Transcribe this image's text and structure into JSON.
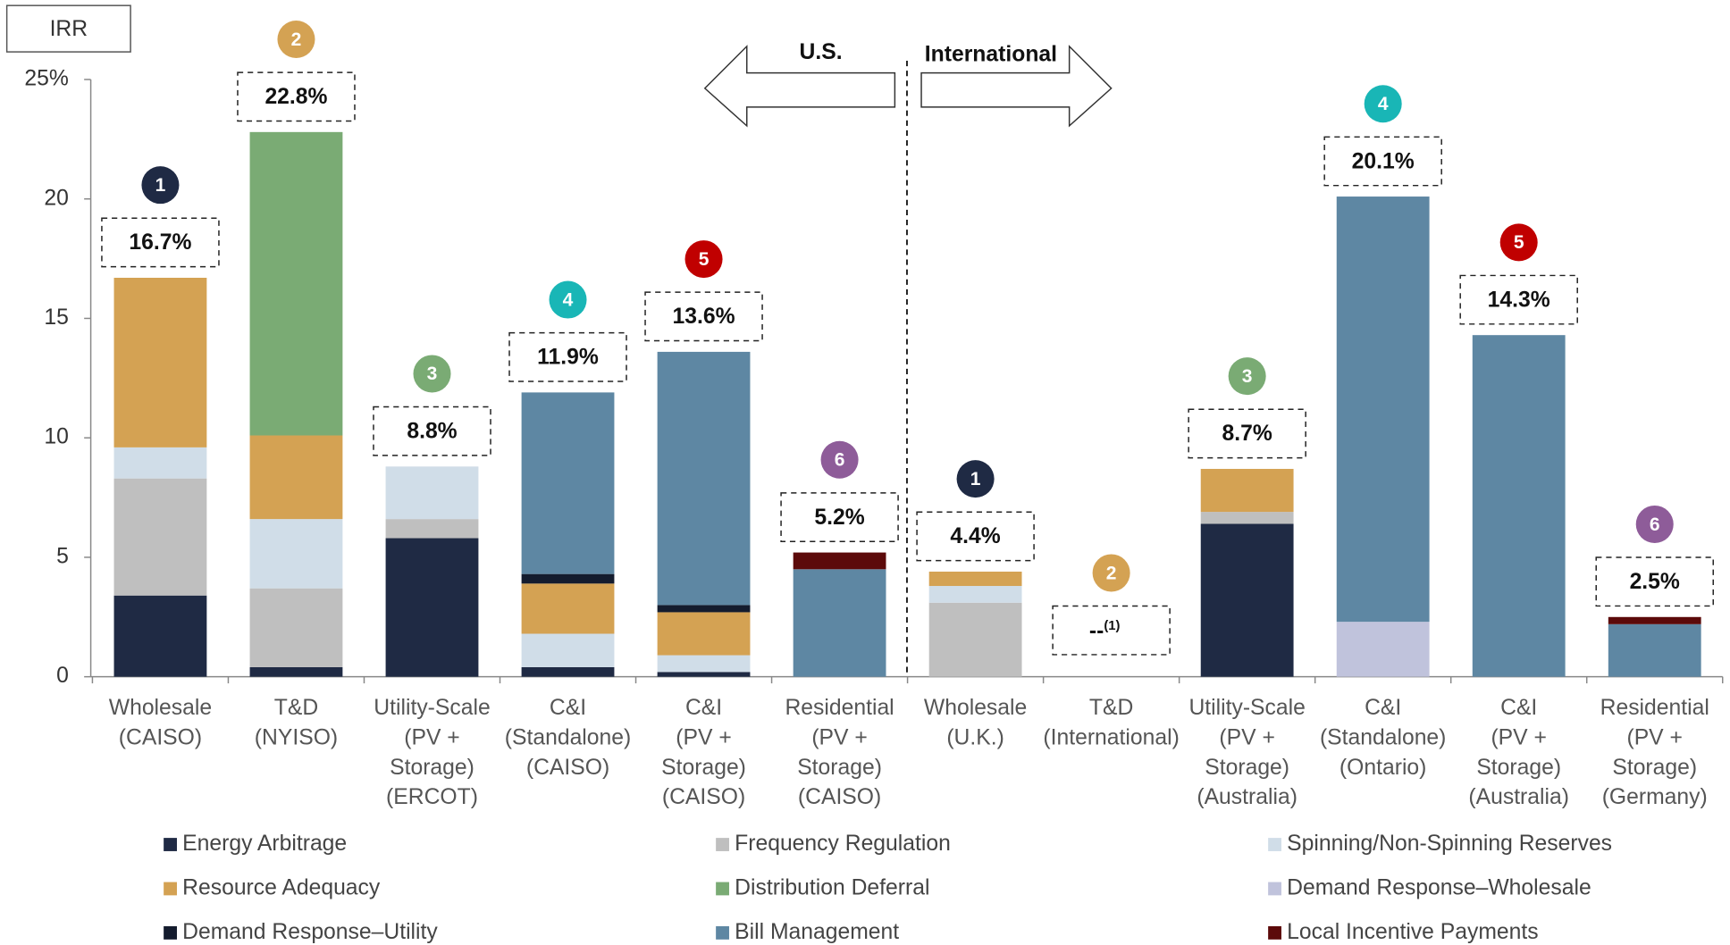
{
  "chart_data": {
    "type": "stacked_bar",
    "y_label": "IRR",
    "regions": [
      "U.S.",
      "International"
    ],
    "categories": [
      [
        "Wholesale",
        "(CAISO)"
      ],
      [
        "T&D",
        "(NYISO)"
      ],
      [
        "Utility-Scale",
        "(PV +",
        "Storage)",
        "(ERCOT)"
      ],
      [
        "C&I",
        "(Standalone)",
        "(CAISO)"
      ],
      [
        "C&I",
        "(PV +",
        "Storage)",
        "(CAISO)"
      ],
      [
        "Residential",
        "(PV +",
        "Storage)",
        "(CAISO)"
      ],
      [
        "Wholesale",
        "(U.K.)"
      ],
      [
        "T&D",
        "(International)"
      ],
      [
        "Utility-Scale",
        "(PV +",
        "Storage)",
        "(Australia)"
      ],
      [
        "C&I",
        "(Standalone)",
        "(Ontario)"
      ],
      [
        "C&I",
        "(PV +",
        "Storage)",
        "(Australia)"
      ],
      [
        "Residential",
        "(PV +",
        "Storage)",
        "(Germany)"
      ]
    ],
    "series": [
      {
        "name": "Energy Arbitrage",
        "color": "#1f2a44",
        "values": [
          3.4,
          0.4,
          5.8,
          0.4,
          0.2,
          null,
          null,
          null,
          6.4,
          null,
          null,
          null
        ]
      },
      {
        "name": "Frequency Regulation",
        "color": "#bfbfbf",
        "values": [
          4.9,
          3.3,
          0.8,
          null,
          null,
          null,
          3.1,
          null,
          0.5,
          null,
          null,
          null
        ]
      },
      {
        "name": "Spinning/Non-Spinning Reserves",
        "color": "#d0dde8",
        "values": [
          1.3,
          2.9,
          2.2,
          1.4,
          0.7,
          null,
          0.7,
          null,
          null,
          null,
          null,
          null
        ]
      },
      {
        "name": "Resource Adequacy",
        "color": "#d4a253",
        "values": [
          7.1,
          3.5,
          null,
          2.1,
          1.8,
          null,
          0.6,
          null,
          1.8,
          null,
          null,
          null
        ]
      },
      {
        "name": "Distribution  Deferral",
        "color": "#7aab74",
        "values": [
          null,
          12.7,
          null,
          null,
          null,
          null,
          null,
          null,
          null,
          null,
          null,
          null
        ]
      },
      {
        "name": "Demand Response–Wholesale",
        "color": "#c0c3dc",
        "values": [
          null,
          null,
          null,
          null,
          null,
          null,
          null,
          null,
          null,
          2.3,
          null,
          null
        ]
      },
      {
        "name": "Demand Response–Utility",
        "color": "#141c2e",
        "values": [
          null,
          null,
          null,
          0.4,
          0.3,
          null,
          null,
          null,
          null,
          null,
          null,
          null
        ]
      },
      {
        "name": "Bill Management",
        "color": "#5e87a3",
        "values": [
          null,
          null,
          null,
          7.6,
          10.6,
          4.5,
          null,
          null,
          null,
          17.8,
          14.3,
          2.2
        ]
      },
      {
        "name": "Local Incentive Payments",
        "color": "#5c0a0a",
        "values": [
          null,
          null,
          null,
          null,
          null,
          0.7,
          null,
          null,
          null,
          null,
          null,
          0.3
        ]
      }
    ],
    "totals": [
      16.7,
      22.8,
      8.8,
      11.9,
      13.6,
      5.2,
      4.4,
      null,
      8.7,
      20.1,
      14.3,
      2.5
    ],
    "total_labels": [
      "16.7%",
      "22.8%",
      "8.8%",
      "11.9%",
      "13.6%",
      "5.2%",
      "4.4%",
      {
        "text": "--",
        "note": "(1)"
      },
      "8.7%",
      "20.1%",
      "14.3%",
      "2.5%"
    ],
    "badges": [
      {
        "label": "1",
        "color": "#1f2a44"
      },
      {
        "label": "2",
        "color": "#d4a253"
      },
      {
        "label": "3",
        "color": "#7aab74"
      },
      {
        "label": "4",
        "color": "#19b6b6"
      },
      {
        "label": "5",
        "color": "#c00000"
      },
      {
        "label": "6",
        "color": "#8e5c99"
      },
      {
        "label": "1",
        "color": "#1f2a44"
      },
      {
        "label": "2",
        "color": "#d4a253"
      },
      {
        "label": "3",
        "color": "#7aab74"
      },
      {
        "label": "4",
        "color": "#19b6b6"
      },
      {
        "label": "5",
        "color": "#c00000"
      },
      {
        "label": "6",
        "color": "#8e5c99"
      }
    ],
    "ylim": [
      0,
      25
    ],
    "yticks": [
      0,
      5,
      10,
      15,
      20,
      {
        "value": 25,
        "label": "25%"
      }
    ]
  }
}
